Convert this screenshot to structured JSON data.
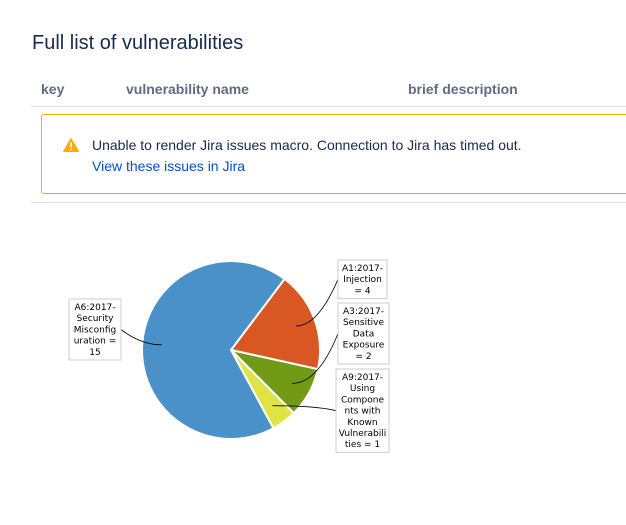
{
  "page": {
    "title": "Full list of vulnerabilities"
  },
  "table": {
    "columns": [
      "key",
      "vulnerability name",
      "brief description"
    ]
  },
  "jira_warning": {
    "icon": "warning-icon",
    "message": "Unable to render Jira issues macro. Connection to Jira has timed out.",
    "link_text": "View these issues in Jira",
    "border_color": "#ffab00",
    "icon_color": "#ffab00",
    "link_color": "#0052cc"
  },
  "chart_data": {
    "type": "pie",
    "slices": [
      {
        "label": "A1:2017-Injection",
        "value": 4,
        "color": "#d95722",
        "label_lines": [
          "A1:2017-",
          "Injection",
          "= 4"
        ]
      },
      {
        "label": "A3:2017-Sensitive Data Exposure",
        "value": 2,
        "color": "#739a15",
        "label_lines": [
          "A3:2017-",
          "Sensitive",
          "Data",
          "Exposure",
          "= 2"
        ]
      },
      {
        "label": "A9:2017-Using Components with Known Vulnerabilities",
        "value": 1,
        "color": "#e1e244",
        "label_lines": [
          "A9:2017-",
          "Using",
          "Compone",
          "nts with",
          "Known",
          "Vulnerabili",
          "ties = 1"
        ]
      },
      {
        "label": "A6:2017-Security Misconfiguration",
        "value": 15,
        "color": "#4a90c9",
        "label_lines": [
          "A6:2017-",
          "Security",
          "Misconfig",
          "uration =",
          "15"
        ]
      }
    ]
  }
}
